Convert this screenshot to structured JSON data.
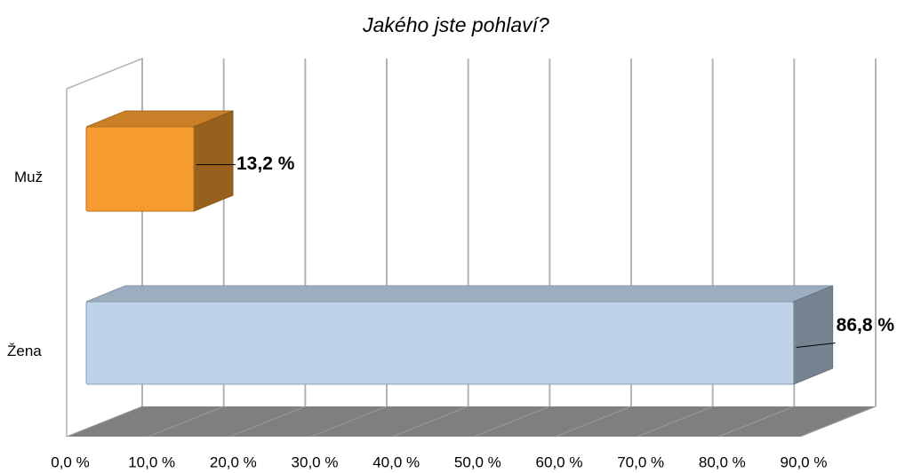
{
  "chart_data": {
    "type": "bar3d_horizontal",
    "title": "Jakého jste pohlaví?",
    "categories": [
      "Muž",
      "Žena"
    ],
    "values": [
      13.2,
      86.8
    ],
    "value_labels": [
      "13,2 %",
      "86,8 %"
    ],
    "colors": [
      "#f59b2f",
      "#bed3ea"
    ],
    "xlim": [
      0,
      90
    ],
    "xticks": [
      {
        "value": 0,
        "label": "0,0 %"
      },
      {
        "value": 10,
        "label": "10,0 %"
      },
      {
        "value": 20,
        "label": "20,0 %"
      },
      {
        "value": 30,
        "label": "30,0 %"
      },
      {
        "value": 40,
        "label": "40,0 %"
      },
      {
        "value": 50,
        "label": "50,0 %"
      },
      {
        "value": 60,
        "label": "60,0 %"
      },
      {
        "value": 70,
        "label": "70,0 %"
      },
      {
        "value": 80,
        "label": "80,0 %"
      },
      {
        "value": 90,
        "label": "90,0 %"
      }
    ],
    "grid": true
  }
}
